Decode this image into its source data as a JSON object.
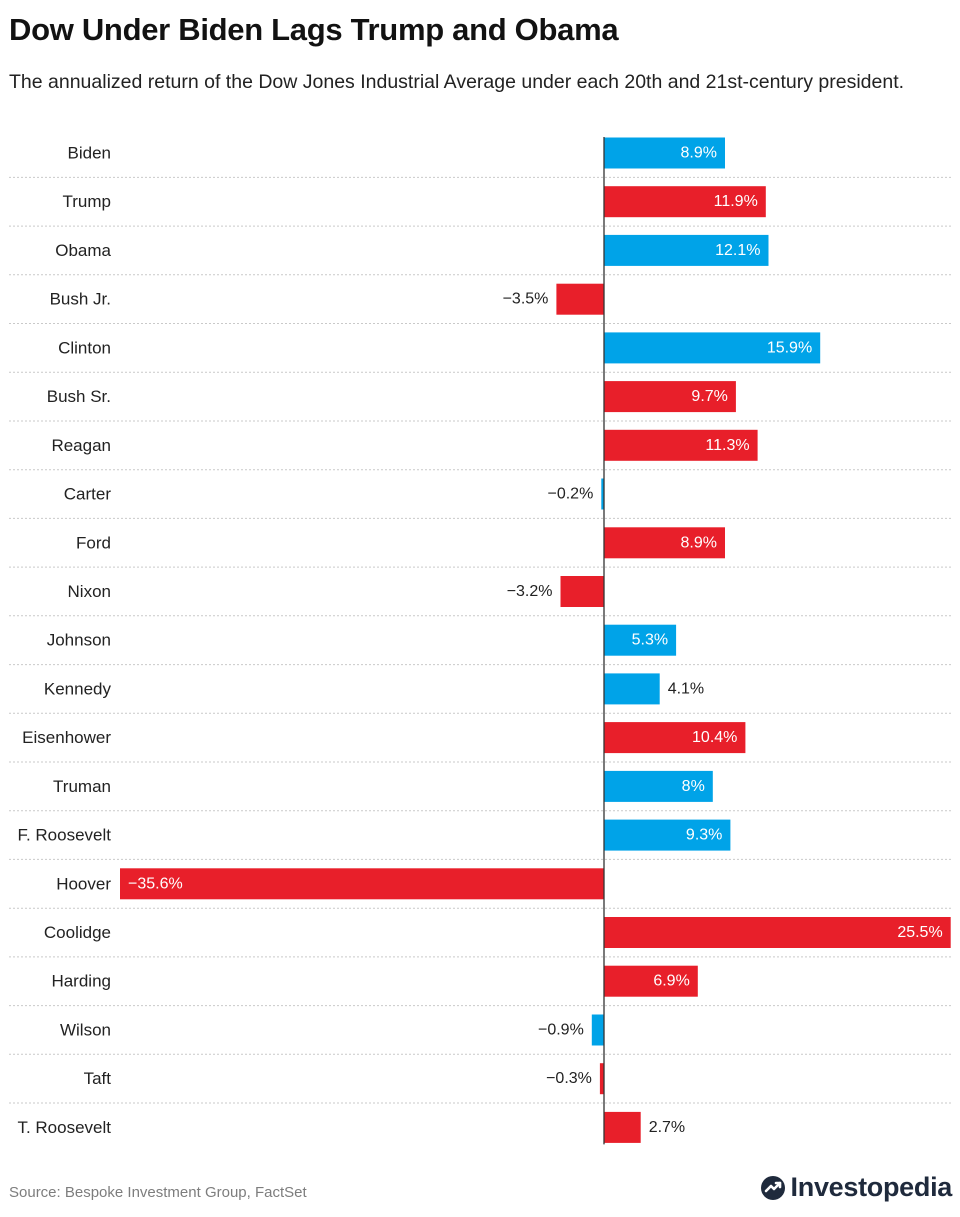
{
  "header": {
    "title": "Dow Under Biden Lags Trump and Obama",
    "subtitle": "The annualized return of the Dow Jones Industrial Average under each 20th and 21st-century president."
  },
  "chart_data": {
    "type": "bar",
    "orientation": "horizontal",
    "title": "Dow Under Biden Lags Trump and Obama",
    "subtitle": "The annualized return of the Dow Jones Industrial Average under each 20th and 21st-century president.",
    "xlabel": "",
    "ylabel": "",
    "xlim": [
      -35.6,
      25.5
    ],
    "grid": false,
    "unit": "%",
    "series": [
      {
        "name": "Annualized return",
        "categories": [
          "Biden",
          "Trump",
          "Obama",
          "Bush Jr.",
          "Clinton",
          "Bush Sr.",
          "Reagan",
          "Carter",
          "Ford",
          "Nixon",
          "Johnson",
          "Kennedy",
          "Eisenhower",
          "Truman",
          "F. Roosevelt",
          "Hoover",
          "Coolidge",
          "Harding",
          "Wilson",
          "Taft",
          "T. Roosevelt"
        ],
        "values": [
          8.9,
          11.9,
          12.1,
          -3.5,
          15.9,
          9.7,
          11.3,
          -0.2,
          8.9,
          -3.2,
          5.3,
          4.1,
          10.4,
          8,
          9.3,
          -35.6,
          25.5,
          6.9,
          -0.9,
          -0.3,
          2.7
        ],
        "labels": [
          "8.9%",
          "11.9%",
          "12.1%",
          "−3.5%",
          "15.9%",
          "9.7%",
          "11.3%",
          "−0.2%",
          "8.9%",
          "−3.2%",
          "5.3%",
          "4.1%",
          "10.4%",
          "8%",
          "9.3%",
          "−35.6%",
          "25.5%",
          "6.9%",
          "−0.9%",
          "−0.3%",
          "2.7%"
        ],
        "party": [
          "Democrat",
          "Republican",
          "Democrat",
          "Republican",
          "Democrat",
          "Republican",
          "Republican",
          "Democrat",
          "Republican",
          "Republican",
          "Democrat",
          "Democrat",
          "Republican",
          "Democrat",
          "Democrat",
          "Republican",
          "Republican",
          "Republican",
          "Democrat",
          "Republican",
          "Republican"
        ]
      }
    ],
    "colors": {
      "Democrat": "#00a3e8",
      "Republican": "#e81f2a"
    }
  },
  "footer": {
    "source": "Source: Bespoke Investment Group, FactSet",
    "brand": "Investopedia"
  }
}
